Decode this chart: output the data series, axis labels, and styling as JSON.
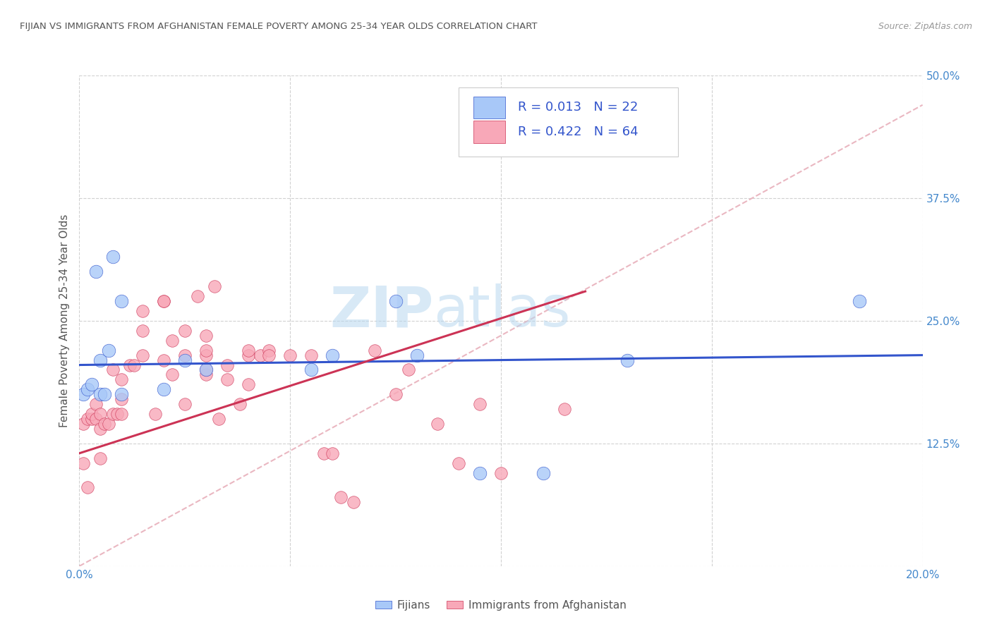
{
  "title": "FIJIAN VS IMMIGRANTS FROM AFGHANISTAN FEMALE POVERTY AMONG 25-34 YEAR OLDS CORRELATION CHART",
  "source": "Source: ZipAtlas.com",
  "ylabel": "Female Poverty Among 25-34 Year Olds",
  "xlim": [
    0.0,
    0.2
  ],
  "ylim": [
    0.0,
    0.5
  ],
  "xticks": [
    0.0,
    0.05,
    0.1,
    0.15,
    0.2
  ],
  "xticklabels": [
    "0.0%",
    "",
    "",
    "",
    "20.0%"
  ],
  "yticks": [
    0.0,
    0.125,
    0.25,
    0.375,
    0.5
  ],
  "yticklabels": [
    "",
    "12.5%",
    "25.0%",
    "37.5%",
    "50.0%"
  ],
  "fijian_R": "0.013",
  "fijian_N": "22",
  "afghan_R": "0.422",
  "afghan_N": "64",
  "fijian_color": "#a8c8f8",
  "afghan_color": "#f8a8b8",
  "trend_fijian_color": "#3355cc",
  "trend_afghan_color": "#cc3355",
  "diagonal_color": "#e8b0bb",
  "legend_label_fijian": "Fijians",
  "legend_label_afghan": "Immigrants from Afghanistan",
  "watermark_zip": "ZIP",
  "watermark_atlas": "atlas",
  "fijian_x": [
    0.001,
    0.002,
    0.003,
    0.004,
    0.005,
    0.005,
    0.006,
    0.007,
    0.008,
    0.01,
    0.01,
    0.02,
    0.025,
    0.03,
    0.055,
    0.06,
    0.075,
    0.08,
    0.095,
    0.11,
    0.13,
    0.185
  ],
  "fijian_y": [
    0.175,
    0.18,
    0.185,
    0.3,
    0.175,
    0.21,
    0.175,
    0.22,
    0.315,
    0.175,
    0.27,
    0.18,
    0.21,
    0.2,
    0.2,
    0.215,
    0.27,
    0.215,
    0.095,
    0.095,
    0.21,
    0.27
  ],
  "afghan_x": [
    0.001,
    0.001,
    0.002,
    0.002,
    0.003,
    0.003,
    0.004,
    0.004,
    0.005,
    0.005,
    0.005,
    0.006,
    0.007,
    0.008,
    0.008,
    0.009,
    0.01,
    0.01,
    0.01,
    0.012,
    0.013,
    0.015,
    0.015,
    0.015,
    0.018,
    0.02,
    0.02,
    0.02,
    0.022,
    0.022,
    0.025,
    0.025,
    0.025,
    0.028,
    0.03,
    0.03,
    0.03,
    0.03,
    0.03,
    0.032,
    0.033,
    0.035,
    0.035,
    0.038,
    0.04,
    0.04,
    0.04,
    0.043,
    0.045,
    0.045,
    0.05,
    0.055,
    0.058,
    0.06,
    0.062,
    0.065,
    0.07,
    0.075,
    0.078,
    0.085,
    0.09,
    0.095,
    0.1,
    0.115
  ],
  "afghan_y": [
    0.145,
    0.105,
    0.15,
    0.08,
    0.15,
    0.155,
    0.15,
    0.165,
    0.14,
    0.155,
    0.11,
    0.145,
    0.145,
    0.155,
    0.2,
    0.155,
    0.155,
    0.17,
    0.19,
    0.205,
    0.205,
    0.24,
    0.215,
    0.26,
    0.155,
    0.21,
    0.27,
    0.27,
    0.195,
    0.23,
    0.165,
    0.215,
    0.24,
    0.275,
    0.195,
    0.2,
    0.215,
    0.22,
    0.235,
    0.285,
    0.15,
    0.19,
    0.205,
    0.165,
    0.215,
    0.22,
    0.185,
    0.215,
    0.22,
    0.215,
    0.215,
    0.215,
    0.115,
    0.115,
    0.07,
    0.065,
    0.22,
    0.175,
    0.2,
    0.145,
    0.105,
    0.165,
    0.095,
    0.16
  ],
  "fijian_trend_y0": 0.205,
  "fijian_trend_y1": 0.215,
  "afghan_trend_x0": 0.0,
  "afghan_trend_y0": 0.115,
  "afghan_trend_x1": 0.12,
  "afghan_trend_y1": 0.28
}
